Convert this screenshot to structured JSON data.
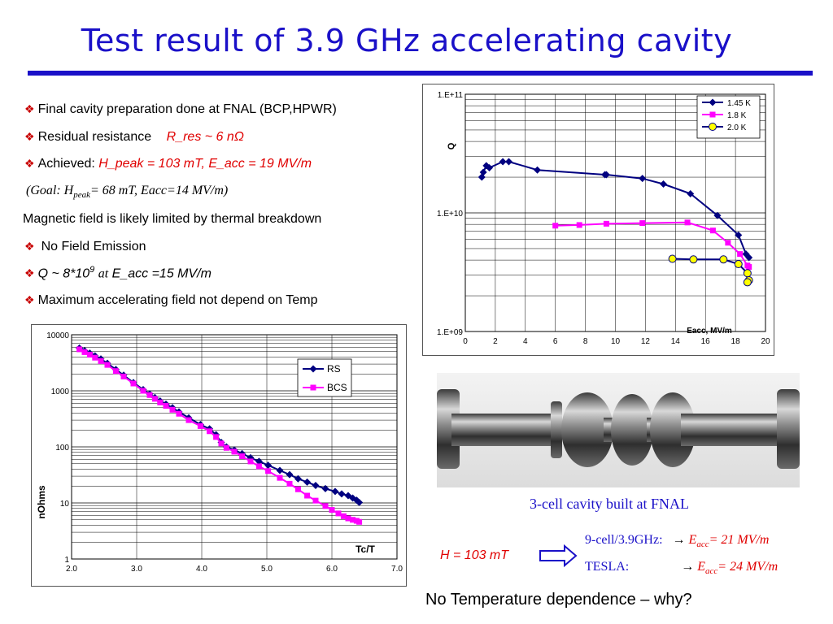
{
  "title": "Test result of 3.9 GHz accelerating cavity",
  "bullets": {
    "b1": "Final cavity preparation done at FNAL (BCP,HPWR)",
    "b2_label": "Residual resistance",
    "b2_value": "R_res ~ 6 nΩ",
    "b3_label": "Achieved:",
    "b3_value": "H_peak = 103 mT,  E_acc = 19 MV/m",
    "goal_prefix": "(Goal: H",
    "goal_sub": "peak",
    "goal_suffix": "= 68 mT,  Eacc=14 MV/m)",
    "magnetic": "Magnetic field is likely limited by thermal breakdown",
    "b4": "No Field Emission",
    "b5_prefix": "Q ~ 8*10",
    "b5_sup": "9",
    "b5_at": "at",
    "b5_suffix": "E_acc =15 MV/m",
    "b6": "Maximum accelerating field not depend on Temp",
    "diamond": "❖"
  },
  "photo_caption": "3-cell cavity built at FNAL",
  "h_label": "H = 103 mT",
  "comparison": [
    {
      "name": "9-cell/3.9GHz:",
      "arrow": "→",
      "sym": "E",
      "sub": "acc",
      "value": "= 21 MV/m"
    },
    {
      "name": "TESLA:",
      "arrow": "→",
      "sym": "E",
      "sub": "acc",
      "value": "= 24 MV/m"
    }
  ],
  "footer": "No Temperature dependence – why?",
  "colors": {
    "blue_title": "#1a10c8",
    "red": "#e00000",
    "navy": "#000080",
    "magenta": "#ff00ff",
    "yellow": "#ffff00"
  },
  "chart_data": [
    {
      "type": "scatter",
      "title": "",
      "xlabel": "Eacc, MV/m",
      "ylabel": "Q",
      "yscale": "log",
      "xlim": [
        0,
        20
      ],
      "ylim": [
        1000000000.0,
        100000000000.0
      ],
      "xticks": [
        "0",
        "2",
        "4",
        "6",
        "8",
        "10",
        "12",
        "14",
        "16",
        "18",
        "20"
      ],
      "yticks": [
        "1.E+09",
        "1.E+10",
        "1.E+11"
      ],
      "grid": true,
      "legend": "top-right",
      "series": [
        {
          "name": "1.45 K",
          "color": "#000080",
          "marker": "diamond",
          "x": [
            1.1,
            1.2,
            1.4,
            1.6,
            2.5,
            2.9,
            4.8,
            9.3,
            9.4,
            11.8,
            13.2,
            15.0,
            16.8,
            18.2,
            18.7,
            18.9
          ],
          "y": [
            20000000000.0,
            22000000000.0,
            25000000000.0,
            24000000000.0,
            27000000000.0,
            27000000000.0,
            23000000000.0,
            21000000000.0,
            21000000000.0,
            19500000000.0,
            17500000000.0,
            14500000000.0,
            9500000000.0,
            6500000000.0,
            4500000000.0,
            4200000000.0
          ]
        },
        {
          "name": "1.8 K",
          "color": "#ff00ff",
          "marker": "square",
          "x": [
            6.0,
            7.6,
            9.4,
            11.8,
            14.8,
            16.5,
            17.5,
            18.3,
            18.8,
            18.9
          ],
          "y": [
            7800000000.0,
            7900000000.0,
            8100000000.0,
            8200000000.0,
            8300000000.0,
            7100000000.0,
            5600000000.0,
            4500000000.0,
            3600000000.0,
            3500000000.0
          ]
        },
        {
          "name": "2.0 K",
          "color": "#000080",
          "fill": "#ffff00",
          "marker": "circle",
          "x": [
            13.8,
            15.2,
            17.2,
            18.2,
            18.8,
            18.9,
            18.8
          ],
          "y": [
            4100000000.0,
            4050000000.0,
            4050000000.0,
            3700000000.0,
            3100000000.0,
            2700000000.0,
            2600000000.0
          ]
        }
      ]
    },
    {
      "type": "scatter",
      "title": "",
      "xlabel": "Tc/T",
      "ylabel": "nOhms",
      "yscale": "log",
      "xlim": [
        2.0,
        7.0
      ],
      "ylim": [
        1,
        10000
      ],
      "xticks": [
        "2.0",
        "3.0",
        "4.0",
        "5.0",
        "6.0",
        "7.0"
      ],
      "yticks": [
        "1",
        "10",
        "100",
        "1000",
        "10000"
      ],
      "grid": true,
      "legend": "top-right",
      "series": [
        {
          "name": "RS",
          "color": "#000080",
          "marker": "diamond",
          "x": [
            2.12,
            2.2,
            2.28,
            2.36,
            2.45,
            2.55,
            2.68,
            2.8,
            2.95,
            3.1,
            3.2,
            3.28,
            3.36,
            3.45,
            3.55,
            3.65,
            3.8,
            3.98,
            4.12,
            4.22,
            4.3,
            4.38,
            4.5,
            4.62,
            4.75,
            4.88,
            5.02,
            5.2,
            5.35,
            5.48,
            5.62,
            5.75,
            5.9,
            6.05,
            6.15,
            6.25,
            6.32,
            6.38,
            6.42
          ],
          "y": [
            5800,
            5200,
            4700,
            4200,
            3700,
            3100,
            2400,
            1900,
            1400,
            1050,
            880,
            760,
            660,
            580,
            500,
            420,
            330,
            250,
            210,
            165,
            120,
            100,
            88,
            76,
            64,
            55,
            47,
            38,
            32,
            27,
            23.5,
            20.5,
            18,
            16,
            14.5,
            13.5,
            12.2,
            11.2,
            10.2
          ]
        },
        {
          "name": "BCS",
          "color": "#ff00ff",
          "marker": "square",
          "x": [
            2.12,
            2.2,
            2.28,
            2.36,
            2.45,
            2.55,
            2.68,
            2.8,
            2.95,
            3.1,
            3.2,
            3.28,
            3.36,
            3.45,
            3.55,
            3.65,
            3.8,
            3.98,
            4.12,
            4.22,
            4.3,
            4.38,
            4.5,
            4.62,
            4.75,
            4.88,
            5.02,
            5.2,
            5.35,
            5.48,
            5.62,
            5.75,
            5.9,
            6.0,
            6.1,
            6.18,
            6.25,
            6.32,
            6.38,
            6.42
          ],
          "y": [
            5500,
            4900,
            4400,
            3900,
            3400,
            2900,
            2250,
            1800,
            1350,
            1000,
            840,
            720,
            620,
            540,
            460,
            390,
            300,
            235,
            190,
            150,
            115,
            96,
            82,
            68,
            55,
            45,
            37,
            28,
            22,
            17.5,
            13.5,
            11,
            8.8,
            7.5,
            6.5,
            5.8,
            5.3,
            5.0,
            4.8,
            4.6
          ]
        }
      ]
    }
  ]
}
